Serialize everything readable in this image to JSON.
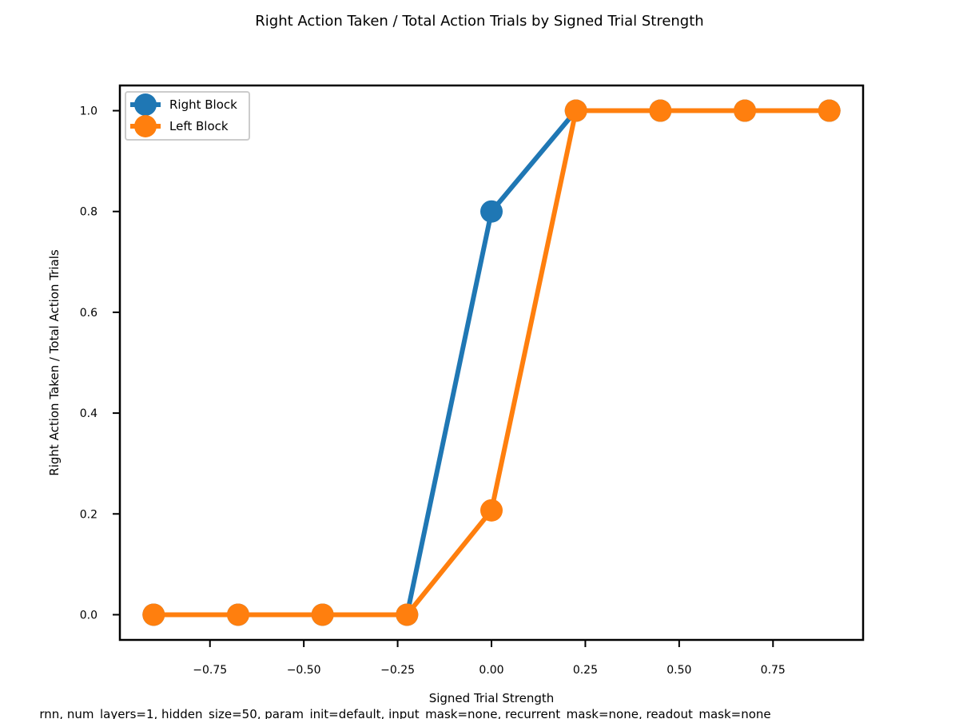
{
  "chart_data": {
    "type": "line",
    "title": "Right Action Taken / Total Action Trials by Signed Trial Strength",
    "xlabel": "Signed Trial Strength",
    "ylabel": "Right Action Taken / Total Action Trials",
    "xlim": [
      -0.99,
      0.99
    ],
    "ylim": [
      -0.05,
      1.05
    ],
    "xticks": [
      -0.75,
      -0.5,
      -0.25,
      0.0,
      0.25,
      0.5,
      0.75
    ],
    "xtick_labels": [
      "−0.75",
      "−0.50",
      "−0.25",
      "0.00",
      "0.25",
      "0.50",
      "0.75"
    ],
    "yticks": [
      0.0,
      0.2,
      0.4,
      0.6,
      0.8,
      1.0
    ],
    "ytick_labels": [
      "0.0",
      "0.2",
      "0.4",
      "0.6",
      "0.8",
      "1.0"
    ],
    "grid": false,
    "legend_position": "top-left",
    "x": [
      -0.9,
      -0.675,
      -0.45,
      -0.225,
      0.0,
      0.225,
      0.45,
      0.675,
      0.9
    ],
    "series": [
      {
        "name": "Right Block",
        "color": "#1f77b4",
        "values": [
          0.0,
          0.0,
          0.0,
          0.0,
          0.8,
          1.0,
          1.0,
          1.0,
          1.0
        ]
      },
      {
        "name": "Left Block",
        "color": "#ff7f0e",
        "values": [
          0.0,
          0.0,
          0.0,
          0.0,
          0.207,
          1.0,
          1.0,
          1.0,
          1.0
        ]
      }
    ],
    "caption": "rnn, num_layers=1, hidden_size=50, param_init=default, input_mask=none, recurrent_mask=none, readout_mask=none"
  }
}
